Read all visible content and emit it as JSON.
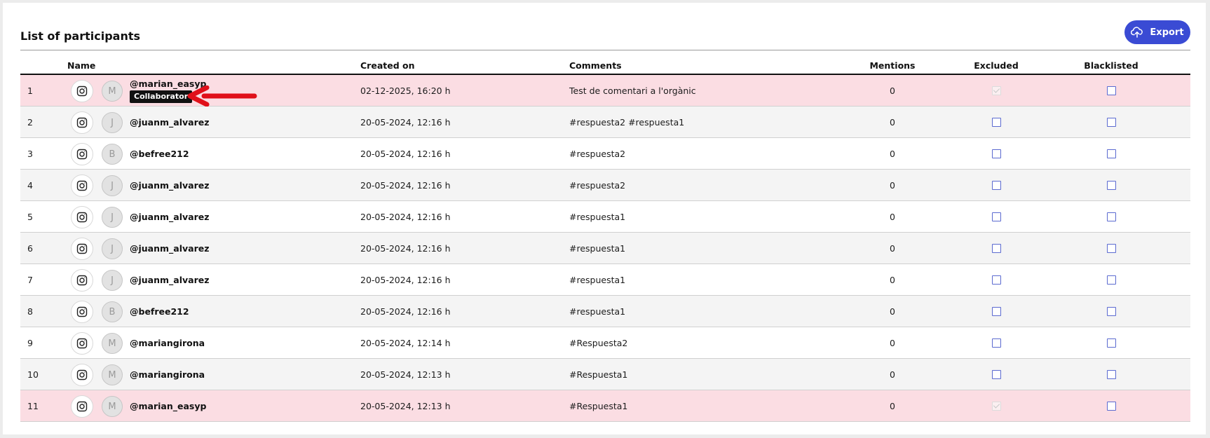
{
  "header": {
    "title": "List of participants",
    "export_label": "Export"
  },
  "columns": {
    "name": "Name",
    "created_on": "Created on",
    "comments": "Comments",
    "mentions": "Mentions",
    "excluded": "Excluded",
    "blacklisted": "Blacklisted"
  },
  "colors": {
    "accent": "#3a4bd4",
    "flagged_row": "#fbdde3",
    "badge": "#111111",
    "arrow": "#e0101a"
  },
  "rows": [
    {
      "num": "1",
      "network_icon": "instagram-icon",
      "avatar": "M",
      "handle": "@marian_easyp",
      "badge": "Collaborator",
      "created": "02-12-2025, 16:20 h",
      "comment": "Test de comentari a l'orgànic",
      "mentions": "0",
      "excluded": true,
      "blacklisted": false,
      "flagged": true
    },
    {
      "num": "2",
      "network_icon": "instagram-icon",
      "avatar": "J",
      "handle": "@juanm_alvarez",
      "created": "20-05-2024, 12:16 h",
      "comment": "#respuesta2 #respuesta1",
      "mentions": "0",
      "excluded": false,
      "blacklisted": false
    },
    {
      "num": "3",
      "network_icon": "instagram-icon",
      "avatar": "B",
      "handle": "@befree212",
      "created": "20-05-2024, 12:16 h",
      "comment": "#respuesta2",
      "mentions": "0",
      "excluded": false,
      "blacklisted": false
    },
    {
      "num": "4",
      "network_icon": "instagram-icon",
      "avatar": "J",
      "handle": "@juanm_alvarez",
      "created": "20-05-2024, 12:16 h",
      "comment": "#respuesta2",
      "mentions": "0",
      "excluded": false,
      "blacklisted": false
    },
    {
      "num": "5",
      "network_icon": "instagram-icon",
      "avatar": "J",
      "handle": "@juanm_alvarez",
      "created": "20-05-2024, 12:16 h",
      "comment": "#respuesta1",
      "mentions": "0",
      "excluded": false,
      "blacklisted": false
    },
    {
      "num": "6",
      "network_icon": "instagram-icon",
      "avatar": "J",
      "handle": "@juanm_alvarez",
      "created": "20-05-2024, 12:16 h",
      "comment": "#respuesta1",
      "mentions": "0",
      "excluded": false,
      "blacklisted": false
    },
    {
      "num": "7",
      "network_icon": "instagram-icon",
      "avatar": "J",
      "handle": "@juanm_alvarez",
      "created": "20-05-2024, 12:16 h",
      "comment": "#respuesta1",
      "mentions": "0",
      "excluded": false,
      "blacklisted": false
    },
    {
      "num": "8",
      "network_icon": "instagram-icon",
      "avatar": "B",
      "handle": "@befree212",
      "created": "20-05-2024, 12:16 h",
      "comment": "#respuesta1",
      "mentions": "0",
      "excluded": false,
      "blacklisted": false
    },
    {
      "num": "9",
      "network_icon": "instagram-icon",
      "avatar": "M",
      "handle": "@mariangirona",
      "created": "20-05-2024, 12:14 h",
      "comment": "#Respuesta2",
      "mentions": "0",
      "excluded": false,
      "blacklisted": false
    },
    {
      "num": "10",
      "network_icon": "instagram-icon",
      "avatar": "M",
      "handle": "@mariangirona",
      "created": "20-05-2024, 12:13 h",
      "comment": "#Respuesta1",
      "mentions": "0",
      "excluded": false,
      "blacklisted": false
    },
    {
      "num": "11",
      "network_icon": "instagram-icon",
      "avatar": "M",
      "handle": "@marian_easyp",
      "created": "20-05-2024, 12:13 h",
      "comment": "#Respuesta1",
      "mentions": "0",
      "excluded": true,
      "blacklisted": false,
      "flagged": true
    }
  ]
}
